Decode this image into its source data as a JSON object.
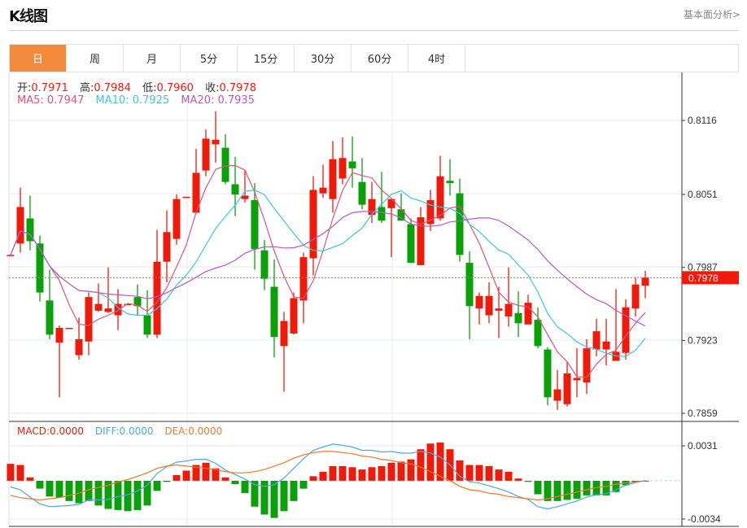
{
  "header": {
    "title": "K线图",
    "link": "基本面分析>"
  },
  "tabs": [
    {
      "label": "日",
      "active": true
    },
    {
      "label": "周"
    },
    {
      "label": "月"
    },
    {
      "label": "5分"
    },
    {
      "label": "15分"
    },
    {
      "label": "30分"
    },
    {
      "label": "60分"
    },
    {
      "label": "4时"
    }
  ],
  "ohlc_legend": {
    "open_label": "开:",
    "open": "0.7971",
    "high_label": "高:",
    "high": "0.7984",
    "low_label": "低:",
    "low": "0.7960",
    "close_label": "收:",
    "close": "0.7978"
  },
  "ma_legend": {
    "ma5": "MA5: 0.7947",
    "ma10": "MA10: 0.7925",
    "ma20": "MA20: 0.7935"
  },
  "macd_legend": {
    "macd": "MACD:0.0000",
    "diff": "DIFF:0.0000",
    "dea": "DEA:0.0000"
  },
  "colors": {
    "up": "#f01a0a",
    "down": "#0aa00a",
    "ma5": "#e8507a",
    "ma10": "#3cc8dc",
    "ma20": "#b45ac8",
    "diff": "#4aa8e8",
    "dea": "#f07828",
    "active_tab": "#f28c3c"
  },
  "chart_data": {
    "type": "candlestick",
    "price_axis": {
      "ticks": [
        "0.8116",
        "0.8051",
        "0.7987",
        "0.7923",
        "0.7859"
      ],
      "range": [
        0.7859,
        0.8116
      ]
    },
    "last_price": "0.7978",
    "macd_axis": {
      "ticks": [
        "0.0031",
        "-0.0034"
      ],
      "range": [
        -0.0034,
        0.0031
      ]
    },
    "ma_periods": [
      5,
      10,
      20
    ],
    "candles": [
      [
        0.7998,
        0.7998,
        0.7998,
        0.7998
      ],
      [
        0.8008,
        0.8057,
        0.8,
        0.804
      ],
      [
        0.803,
        0.805,
        0.8002,
        0.801
      ],
      [
        0.8008,
        0.8015,
        0.7957,
        0.7965
      ],
      [
        0.7958,
        0.7985,
        0.7924,
        0.7928
      ],
      [
        0.7921,
        0.7936,
        0.7873,
        0.7934
      ],
      [
        0.7934,
        0.7934,
        0.7934,
        0.7934
      ],
      [
        0.791,
        0.7943,
        0.7906,
        0.7924
      ],
      [
        0.7922,
        0.7965,
        0.791,
        0.7961
      ],
      [
        0.7949,
        0.7973,
        0.7948,
        0.7955
      ],
      [
        0.7948,
        0.7987,
        0.7947,
        0.7951
      ],
      [
        0.7945,
        0.7968,
        0.7932,
        0.7955
      ],
      [
        0.7955,
        0.7955,
        0.7955,
        0.7955
      ],
      [
        0.7961,
        0.7972,
        0.7945,
        0.7953
      ],
      [
        0.7945,
        0.7967,
        0.7925,
        0.7928
      ],
      [
        0.7928,
        0.802,
        0.7925,
        0.7992
      ],
      [
        0.7992,
        0.8037,
        0.7974,
        0.8018
      ],
      [
        0.8012,
        0.8051,
        0.8007,
        0.8047
      ],
      [
        0.8049,
        0.8049,
        0.8049,
        0.8049
      ],
      [
        0.8035,
        0.8091,
        0.8035,
        0.807
      ],
      [
        0.8072,
        0.8108,
        0.8067,
        0.81
      ],
      [
        0.8095,
        0.8124,
        0.8079,
        0.8099
      ],
      [
        0.8092,
        0.8104,
        0.806,
        0.8062
      ],
      [
        0.806,
        0.8084,
        0.8032,
        0.8051
      ],
      [
        0.8047,
        0.8072,
        0.8044,
        0.805
      ],
      [
        0.8046,
        0.8061,
        0.7985,
        0.8003
      ],
      [
        0.8002,
        0.8011,
        0.7967,
        0.7977
      ],
      [
        0.797,
        0.7994,
        0.7908,
        0.7926
      ],
      [
        0.7918,
        0.7948,
        0.7878,
        0.794
      ],
      [
        0.7929,
        0.7965,
        0.7928,
        0.796
      ],
      [
        0.7958,
        0.8,
        0.7938,
        0.7996
      ],
      [
        0.7995,
        0.8067,
        0.798,
        0.8055
      ],
      [
        0.8052,
        0.8077,
        0.8048,
        0.8057
      ],
      [
        0.8047,
        0.8098,
        0.8035,
        0.8082
      ],
      [
        0.8065,
        0.8101,
        0.806,
        0.8083
      ],
      [
        0.808,
        0.8102,
        0.8057,
        0.8074
      ],
      [
        0.8062,
        0.8083,
        0.8038,
        0.8042
      ],
      [
        0.8033,
        0.8062,
        0.8026,
        0.8047
      ],
      [
        0.804,
        0.8071,
        0.8026,
        0.8028
      ],
      [
        0.8039,
        0.8047,
        0.7996,
        0.8047
      ],
      [
        0.8038,
        0.8052,
        0.8028,
        0.8028
      ],
      [
        0.8025,
        0.803,
        0.7991,
        0.7991
      ],
      [
        0.7989,
        0.804,
        0.7989,
        0.8031
      ],
      [
        0.8025,
        0.8055,
        0.8019,
        0.8046
      ],
      [
        0.803,
        0.8085,
        0.8028,
        0.8067
      ],
      [
        0.8063,
        0.8082,
        0.805,
        0.8061
      ],
      [
        0.8052,
        0.8065,
        0.7992,
        0.7998
      ],
      [
        0.7991,
        0.8001,
        0.7924,
        0.7953
      ],
      [
        0.7951,
        0.7965,
        0.7937,
        0.7962
      ],
      [
        0.7945,
        0.7974,
        0.7938,
        0.7962
      ],
      [
        0.7949,
        0.797,
        0.7925,
        0.7951
      ],
      [
        0.7944,
        0.7987,
        0.7935,
        0.7955
      ],
      [
        0.7947,
        0.7966,
        0.7926,
        0.7938
      ],
      [
        0.7937,
        0.7963,
        0.7937,
        0.7956
      ],
      [
        0.7941,
        0.7952,
        0.7916,
        0.7918
      ],
      [
        0.7915,
        0.7917,
        0.7866,
        0.7873
      ],
      [
        0.787,
        0.7897,
        0.7862,
        0.788
      ],
      [
        0.7867,
        0.7904,
        0.7865,
        0.7894
      ],
      [
        0.7888,
        0.7916,
        0.7873,
        0.789
      ],
      [
        0.7886,
        0.7924,
        0.7876,
        0.7916
      ],
      [
        0.7915,
        0.7942,
        0.7909,
        0.7931
      ],
      [
        0.7915,
        0.7942,
        0.7901,
        0.7922
      ],
      [
        0.7905,
        0.7968,
        0.7905,
        0.7913
      ],
      [
        0.7912,
        0.7959,
        0.7906,
        0.7952
      ],
      [
        0.7951,
        0.7978,
        0.7944,
        0.7972
      ],
      [
        0.7971,
        0.7984,
        0.796,
        0.7978
      ]
    ],
    "macd": [
      0.0015,
      0.0014,
      0.0003,
      -0.0007,
      -0.0014,
      -0.0015,
      -0.0018,
      -0.002,
      -0.0018,
      -0.0022,
      -0.0025,
      -0.0026,
      -0.0027,
      -0.0026,
      -0.0022,
      -0.0009,
      -0.0001,
      0.0005,
      0.0009,
      0.0014,
      0.0016,
      0.0011,
      0.0003,
      -0.0003,
      -0.0011,
      -0.0023,
      -0.003,
      -0.0033,
      -0.0027,
      -0.0018,
      -0.0007,
      0.0004,
      0.0008,
      0.0013,
      0.0013,
      0.0012,
      0.001,
      0.0012,
      0.0013,
      0.0016,
      0.0017,
      0.0019,
      0.0028,
      0.0033,
      0.0034,
      0.0028,
      0.0018,
      0.0014,
      0.0014,
      0.0013,
      0.001,
      0.0008,
      0.0002,
      -0.0001,
      -0.0012,
      -0.0018,
      -0.0018,
      -0.0017,
      -0.0016,
      -0.0013,
      -0.0013,
      -0.0013,
      -0.001,
      -0.0004,
      -0.0001,
      0.0
    ],
    "dea": [
      -0.0013,
      -0.0015,
      -0.0016,
      -0.0017,
      -0.0016,
      -0.0015,
      -0.0013,
      -0.0011,
      -0.0008,
      -0.0006,
      -0.0004,
      -0.0001,
      0.0001,
      0.0004,
      0.0007,
      0.0011,
      0.0013,
      0.0014,
      0.0013,
      0.0012,
      0.0011,
      0.001,
      0.0008,
      0.0007,
      0.0007,
      0.0008,
      0.001,
      0.0013,
      0.0016,
      0.002,
      0.0023,
      0.0025,
      0.0026,
      0.0026,
      0.0025,
      0.0024,
      0.0022,
      0.0021,
      0.0019,
      0.0018,
      0.0016,
      0.0015,
      0.0012,
      0.0008,
      0.0004,
      0.0,
      -0.0005,
      -0.0008,
      -0.0009,
      -0.0011,
      -0.0012,
      -0.0014,
      -0.0015,
      -0.0016,
      -0.0017,
      -0.0016,
      -0.0014,
      -0.0012,
      -0.001,
      -0.0008,
      -0.0006,
      -0.0005,
      -0.0003,
      -0.0002,
      -0.0001,
      0.0
    ]
  }
}
